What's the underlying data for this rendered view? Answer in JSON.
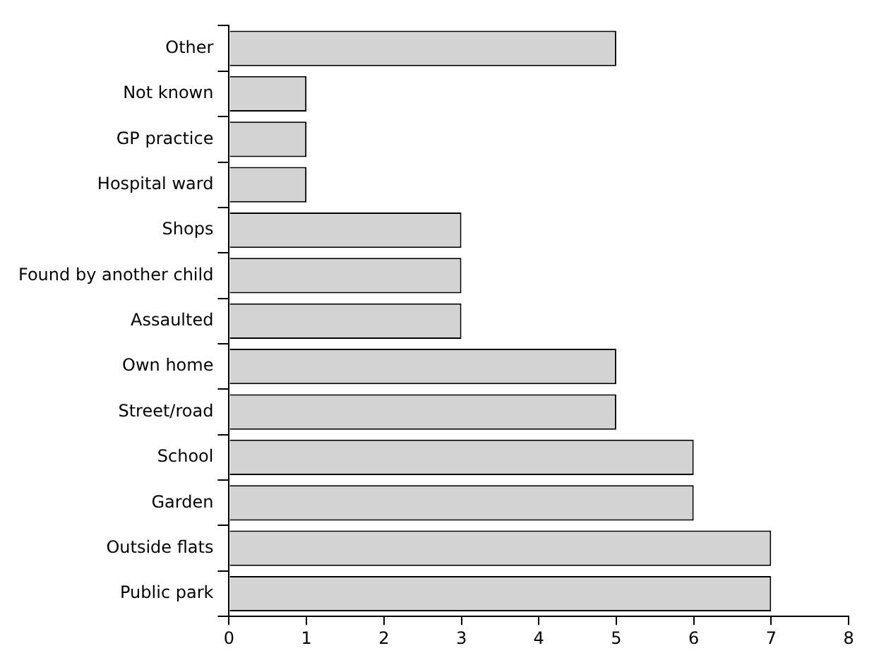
{
  "chart_data": {
    "type": "bar",
    "orientation": "horizontal",
    "categories": [
      "Other",
      "Not known",
      "GP practice",
      "Hospital ward",
      "Shops",
      "Found by another child",
      "Assaulted",
      "Own home",
      "Street/road",
      "School",
      "Garden",
      "Outside flats",
      "Public park"
    ],
    "values": [
      5,
      1,
      1,
      1,
      3,
      3,
      3,
      5,
      5,
      6,
      6,
      7,
      7
    ],
    "color": "#d3d3d3",
    "xlim": [
      0,
      8
    ],
    "xticks": [
      0,
      1,
      2,
      3,
      4,
      5,
      6,
      7,
      8
    ],
    "grid": false,
    "legend": false
  }
}
